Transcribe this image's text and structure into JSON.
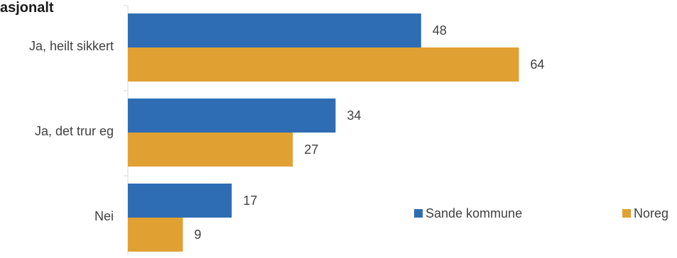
{
  "chart_data": {
    "type": "bar",
    "orientation": "horizontal",
    "title": "asjonalt",
    "categories": [
      "Ja, heilt sikkert",
      "Ja, det trur eg",
      "Nei"
    ],
    "series": [
      {
        "name": "Sande kommune",
        "values": [
          48,
          34,
          17
        ],
        "color": "#2e6db4"
      },
      {
        "name": "Noreg",
        "values": [
          64,
          27,
          9
        ],
        "color": "#e0a032"
      }
    ],
    "xlim": [
      0,
      100
    ],
    "grid": false,
    "legend": "bottom-right"
  }
}
